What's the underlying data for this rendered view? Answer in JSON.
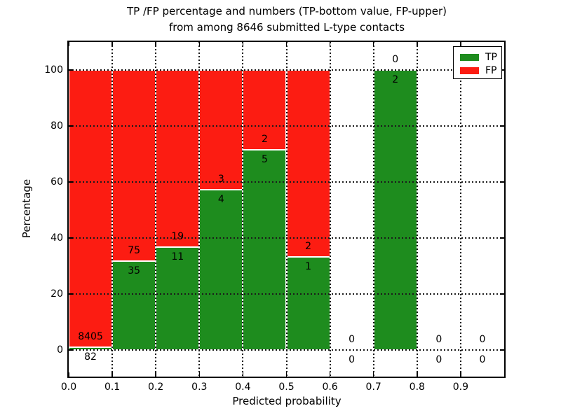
{
  "title": {
    "line1": "TP /FP percentage and numbers (TP-bottom value, FP-upper)",
    "line2": "from among 8646 submitted L-type contacts"
  },
  "x_axis": {
    "label": "Predicted probability"
  },
  "y_axis": {
    "label": "Percentage"
  },
  "legend": {
    "items": [
      {
        "label": "TP",
        "color": "#1e8c1e"
      },
      {
        "label": "FP",
        "color": "#fc1c12"
      }
    ]
  },
  "chart_data": {
    "type": "bar",
    "subtype": "stacked-percentage-histogram",
    "title": "TP /FP percentage and numbers (TP-bottom value, FP-upper) from among 8646 submitted L-type contacts",
    "xlabel": "Predicted probability",
    "ylabel": "Percentage",
    "xlim": [
      0.0,
      1.0
    ],
    "ylim_display": [
      -9.5,
      110
    ],
    "xticks": [
      "0.0",
      "0.1",
      "0.2",
      "0.3",
      "0.4",
      "0.5",
      "0.6",
      "0.7",
      "0.8",
      "0.9"
    ],
    "yticks": [
      0,
      20,
      40,
      60,
      80,
      100
    ],
    "grid": true,
    "legend_position": "upper-right",
    "bin_width": 0.1,
    "bin_starts": [
      0.0,
      0.1,
      0.2,
      0.3,
      0.4,
      0.5,
      0.6,
      0.7,
      0.8,
      0.9
    ],
    "categories": [
      "0.0-0.1",
      "0.1-0.2",
      "0.2-0.3",
      "0.3-0.4",
      "0.4-0.5",
      "0.5-0.6",
      "0.6-0.7",
      "0.7-0.8",
      "0.8-0.9",
      "0.9-1.0"
    ],
    "series": [
      {
        "name": "TP",
        "color": "#1e8c1e",
        "counts": [
          82,
          35,
          11,
          4,
          5,
          1,
          0,
          2,
          0,
          0
        ]
      },
      {
        "name": "FP",
        "color": "#fc1c12",
        "counts": [
          8405,
          75,
          19,
          3,
          2,
          2,
          0,
          0,
          0,
          0
        ]
      }
    ],
    "tp_percent": [
      0.97,
      31.82,
      36.67,
      57.14,
      71.43,
      33.33,
      null,
      100.0,
      null,
      null
    ]
  }
}
